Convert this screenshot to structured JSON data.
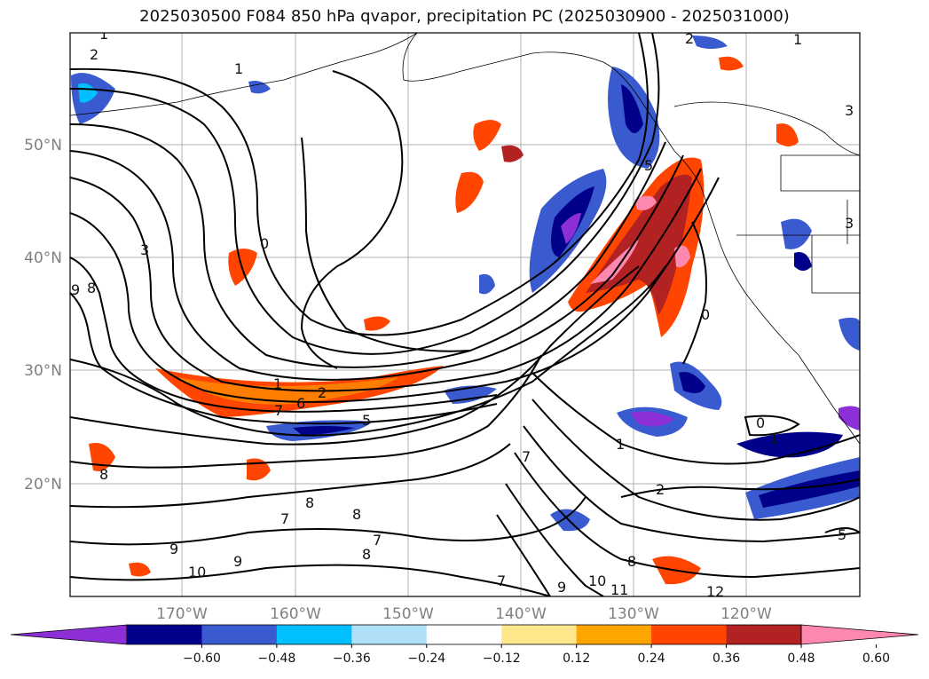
{
  "title": "2025030500 F084 850 hPa qvapor, precipitation PC (2025030900 - 2025031000)",
  "lon_labels": [
    "170°W",
    "160°W",
    "150°W",
    "140°W",
    "130°W",
    "120°W"
  ],
  "lat_labels": [
    "50°N",
    "40°N",
    "30°N",
    "20°N"
  ],
  "colorbar": {
    "colors": [
      "#8c2fd6",
      "#00008b",
      "#3a5bd0",
      "#00bfff",
      "#b0e0f8",
      "#ffffff",
      "#ffe88c",
      "#ffa500",
      "#ff4500",
      "#b22222",
      "#ff88b0"
    ],
    "tick_labels": [
      "−0.60",
      "−0.48",
      "−0.36",
      "−0.24",
      "−0.12",
      "0.12",
      "0.24",
      "0.36",
      "0.48",
      "0.60"
    ]
  },
  "contour_labels": [
    "1",
    "2",
    "2",
    "1",
    "3",
    "0",
    "9",
    "8",
    "3",
    "1",
    "1",
    "1",
    "7",
    "6",
    "5",
    "2",
    "8",
    "7",
    "8",
    "7",
    "8",
    "8",
    "9",
    "9",
    "10",
    "7",
    "9",
    "10",
    "11",
    "12",
    "8",
    "7",
    "0",
    "1",
    "5",
    "0",
    "2",
    "3",
    "5"
  ],
  "chart_data": {
    "type": "map",
    "map_extent": {
      "lon": [
        -180,
        -110
      ],
      "lat": [
        10,
        60
      ]
    },
    "gridlines": true,
    "contour_field": "850 hPa qvapor",
    "shaded_field": "precipitation PC",
    "colorbar_levels": [
      -0.6,
      -0.48,
      -0.36,
      -0.24,
      -0.12,
      0.12,
      0.24,
      0.36,
      0.48,
      0.6
    ],
    "colorbar_extend": "both"
  }
}
